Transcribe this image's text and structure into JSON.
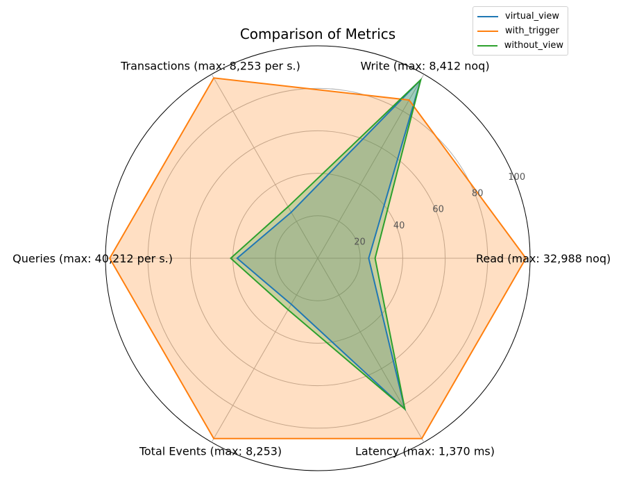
{
  "chart_data": {
    "type": "radar",
    "title": "Comparison of Metrics",
    "axes": [
      "Read (max: 32,988 noq)",
      "Write (max: 8,412 noq)",
      "Transactions (max: 8,253 per s.)",
      "Queries (max: 40,212 per s.)",
      "Total Events (max: 8,253)",
      "Latency (max: 1,370 ms)"
    ],
    "radial_ticks": [
      "20",
      "40",
      "60",
      "80",
      "100"
    ],
    "rlim": [
      0,
      100
    ],
    "grid": true,
    "legend_position": "top-right",
    "series": [
      {
        "name": "virtual_view",
        "color": "#1f77b4",
        "values": [
          24,
          97,
          25,
          38,
          25,
          82
        ]
      },
      {
        "name": "with_trigger",
        "color": "#ff7f0e",
        "values": [
          98,
          86,
          98,
          98,
          98,
          98
        ]
      },
      {
        "name": "without_view",
        "color": "#2ca02c",
        "values": [
          27,
          97,
          28,
          41,
          28,
          82
        ]
      }
    ]
  }
}
